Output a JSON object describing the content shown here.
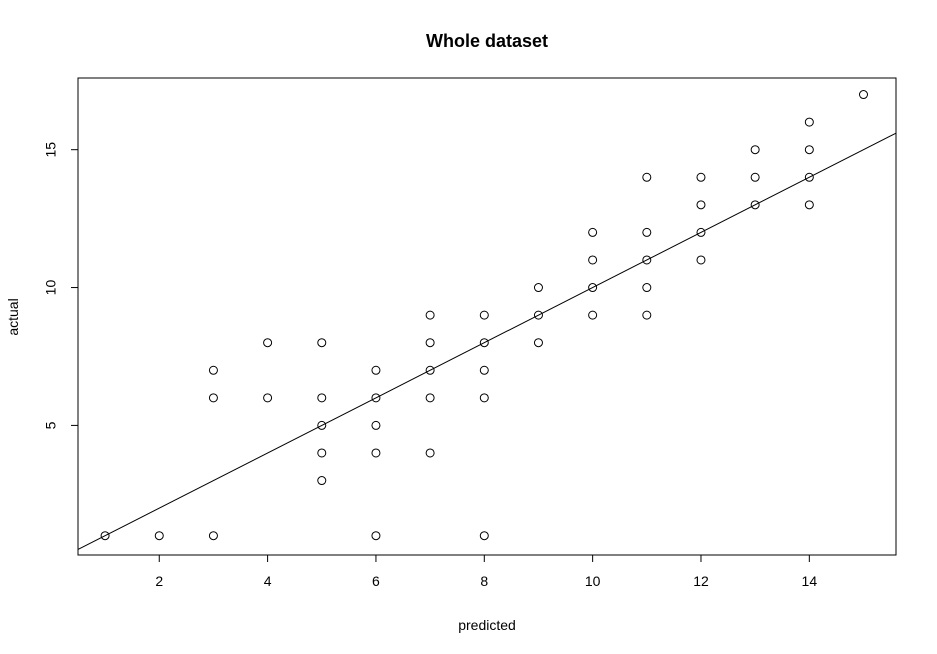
{
  "chart_data": {
    "type": "scatter",
    "title": "Whole dataset",
    "xlabel": "predicted",
    "ylabel": "actual",
    "xlim": [
      0.5,
      15.6
    ],
    "ylim": [
      0.3,
      17.6
    ],
    "xticks": [
      2,
      4,
      6,
      8,
      10,
      12,
      14
    ],
    "yticks": [
      5,
      10,
      15
    ],
    "grid": false,
    "legend": "none",
    "reference_line": {
      "intercept": 0,
      "slope": 1
    },
    "points": [
      {
        "x": 1,
        "y": 1
      },
      {
        "x": 2,
        "y": 1
      },
      {
        "x": 3,
        "y": 1
      },
      {
        "x": 3,
        "y": 6
      },
      {
        "x": 3,
        "y": 7
      },
      {
        "x": 4,
        "y": 6
      },
      {
        "x": 4,
        "y": 8
      },
      {
        "x": 5,
        "y": 3
      },
      {
        "x": 5,
        "y": 4
      },
      {
        "x": 5,
        "y": 5
      },
      {
        "x": 5,
        "y": 6
      },
      {
        "x": 5,
        "y": 8
      },
      {
        "x": 6,
        "y": 1
      },
      {
        "x": 6,
        "y": 4
      },
      {
        "x": 6,
        "y": 5
      },
      {
        "x": 6,
        "y": 6
      },
      {
        "x": 6,
        "y": 7
      },
      {
        "x": 7,
        "y": 4
      },
      {
        "x": 7,
        "y": 6
      },
      {
        "x": 7,
        "y": 7
      },
      {
        "x": 7,
        "y": 8
      },
      {
        "x": 7,
        "y": 9
      },
      {
        "x": 8,
        "y": 1
      },
      {
        "x": 8,
        "y": 6
      },
      {
        "x": 8,
        "y": 7
      },
      {
        "x": 8,
        "y": 8
      },
      {
        "x": 8,
        "y": 9
      },
      {
        "x": 9,
        "y": 8
      },
      {
        "x": 9,
        "y": 9
      },
      {
        "x": 9,
        "y": 10
      },
      {
        "x": 10,
        "y": 9
      },
      {
        "x": 10,
        "y": 10
      },
      {
        "x": 10,
        "y": 11
      },
      {
        "x": 10,
        "y": 12
      },
      {
        "x": 11,
        "y": 9
      },
      {
        "x": 11,
        "y": 10
      },
      {
        "x": 11,
        "y": 11
      },
      {
        "x": 11,
        "y": 12
      },
      {
        "x": 11,
        "y": 14
      },
      {
        "x": 12,
        "y": 11
      },
      {
        "x": 12,
        "y": 12
      },
      {
        "x": 12,
        "y": 13
      },
      {
        "x": 12,
        "y": 14
      },
      {
        "x": 13,
        "y": 13
      },
      {
        "x": 13,
        "y": 14
      },
      {
        "x": 13,
        "y": 15
      },
      {
        "x": 14,
        "y": 13
      },
      {
        "x": 14,
        "y": 14
      },
      {
        "x": 14,
        "y": 15
      },
      {
        "x": 14,
        "y": 16
      },
      {
        "x": 15,
        "y": 17
      }
    ]
  }
}
